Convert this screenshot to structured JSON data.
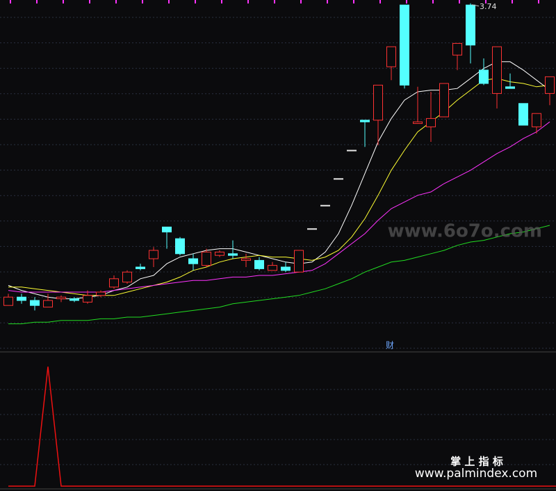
{
  "chart_data": [
    {
      "type": "candlestick",
      "ylim": [
        1.66,
        3.76
      ],
      "up_color": "#ff3232",
      "down_color": "#54ffff",
      "flat_color": "#e8e8e8",
      "open": [
        1.93,
        1.98,
        1.96,
        1.92,
        1.97,
        1.97,
        1.95,
        1.99,
        2.04,
        2.07,
        2.16,
        2.21,
        2.4,
        2.33,
        2.21,
        2.17,
        2.23,
        2.24,
        2.2,
        2.2,
        2.14,
        2.16,
        2.13,
        2.39,
        2.53,
        2.69,
        2.86,
        3.04,
        3.04,
        3.36,
        3.73,
        3.02,
        3.0,
        3.06,
        3.43,
        3.73,
        3.34,
        3.2,
        3.24,
        3.14,
        3.0,
        3.2
      ],
      "close": [
        1.98,
        1.96,
        1.93,
        1.96,
        1.98,
        1.96,
        1.99,
        2.01,
        2.09,
        2.13,
        2.15,
        2.26,
        2.37,
        2.24,
        2.18,
        2.25,
        2.25,
        2.23,
        2.21,
        2.15,
        2.17,
        2.14,
        2.26,
        2.39,
        2.53,
        2.69,
        2.86,
        3.03,
        3.25,
        3.48,
        3.25,
        3.03,
        3.05,
        3.26,
        3.5,
        3.49,
        3.26,
        3.48,
        3.23,
        3.01,
        3.08,
        3.3
      ],
      "high": [
        2.0,
        2.0,
        1.98,
        2.0,
        1.99,
        1.98,
        2.02,
        2.02,
        2.11,
        2.14,
        2.18,
        2.28,
        2.4,
        2.34,
        2.24,
        2.27,
        2.26,
        2.32,
        2.24,
        2.22,
        2.19,
        2.19,
        2.26,
        2.39,
        2.53,
        2.69,
        2.86,
        3.04,
        3.25,
        3.48,
        3.73,
        3.24,
        3.21,
        3.26,
        3.5,
        3.74,
        3.41,
        3.48,
        3.32,
        3.14,
        3.08,
        3.3
      ],
      "low": [
        1.93,
        1.94,
        1.9,
        1.92,
        1.95,
        1.95,
        1.94,
        1.98,
        2.03,
        2.06,
        2.14,
        2.16,
        2.27,
        2.23,
        2.14,
        2.16,
        2.22,
        2.21,
        2.16,
        2.14,
        2.14,
        2.13,
        2.13,
        2.39,
        2.53,
        2.69,
        2.86,
        2.88,
        2.89,
        3.28,
        3.23,
        3.02,
        2.91,
        3.06,
        3.34,
        3.38,
        3.25,
        3.11,
        3.23,
        3.01,
        2.96,
        3.13
      ],
      "lines": [
        {
          "color": "#ffffff",
          "values": [
            2.05,
            2.02,
            2.0,
            1.98,
            1.97,
            1.97,
            1.98,
            1.99,
            2.02,
            2.04,
            2.09,
            2.11,
            2.18,
            2.22,
            2.24,
            2.26,
            2.27,
            2.27,
            2.25,
            2.23,
            2.21,
            2.19,
            2.18,
            2.19,
            2.25,
            2.36,
            2.53,
            2.72,
            2.91,
            3.05,
            3.16,
            3.21,
            3.22,
            3.22,
            3.23,
            3.29,
            3.35,
            3.39,
            3.39,
            3.34,
            3.28,
            3.22
          ]
        },
        {
          "color": "#ffff33",
          "values": [
            2.04,
            2.04,
            2.03,
            2.02,
            2.01,
            2.0,
            1.99,
            1.99,
            1.99,
            2.01,
            2.03,
            2.05,
            2.07,
            2.1,
            2.14,
            2.16,
            2.19,
            2.21,
            2.22,
            2.23,
            2.22,
            2.22,
            2.21,
            2.2,
            2.22,
            2.26,
            2.34,
            2.45,
            2.59,
            2.74,
            2.86,
            2.97,
            3.03,
            3.09,
            3.16,
            3.22,
            3.28,
            3.29,
            3.27,
            3.26,
            3.24,
            3.25
          ]
        },
        {
          "color": "#ff33ff",
          "values": [
            2.02,
            2.01,
            2.01,
            2.01,
            2.01,
            2.01,
            2.01,
            2.01,
            2.02,
            2.03,
            2.04,
            2.05,
            2.06,
            2.07,
            2.08,
            2.08,
            2.09,
            2.1,
            2.1,
            2.11,
            2.11,
            2.12,
            2.13,
            2.14,
            2.18,
            2.24,
            2.3,
            2.36,
            2.44,
            2.51,
            2.55,
            2.59,
            2.61,
            2.66,
            2.7,
            2.74,
            2.79,
            2.84,
            2.88,
            2.93,
            2.97,
            3.03
          ]
        },
        {
          "color": "#22dd22",
          "values": [
            1.82,
            1.82,
            1.83,
            1.83,
            1.84,
            1.84,
            1.84,
            1.85,
            1.85,
            1.86,
            1.86,
            1.87,
            1.88,
            1.89,
            1.9,
            1.91,
            1.92,
            1.94,
            1.95,
            1.96,
            1.97,
            1.98,
            1.99,
            2.01,
            2.03,
            2.06,
            2.09,
            2.13,
            2.16,
            2.19,
            2.2,
            2.22,
            2.24,
            2.26,
            2.29,
            2.31,
            2.32,
            2.34,
            2.36,
            2.37,
            2.39,
            2.41
          ]
        }
      ],
      "marker": "财"
    },
    {
      "type": "line",
      "ylim": [
        0,
        1.1
      ],
      "series": [
        {
          "color": "#ee1111",
          "values": [
            0,
            0,
            0,
            1,
            0,
            0,
            0,
            0,
            0,
            0,
            0,
            0,
            0,
            0,
            0,
            0,
            0,
            0,
            0,
            0,
            0,
            0,
            0,
            0,
            0,
            0,
            0,
            0,
            0,
            0,
            0,
            0,
            0,
            0,
            0,
            0,
            0,
            0,
            0,
            0,
            0,
            0
          ]
        }
      ]
    }
  ],
  "watermark": {
    "site": "www.6o7o.com",
    "brand": "掌 上 指 标",
    "url": "www.palmindex.com"
  }
}
